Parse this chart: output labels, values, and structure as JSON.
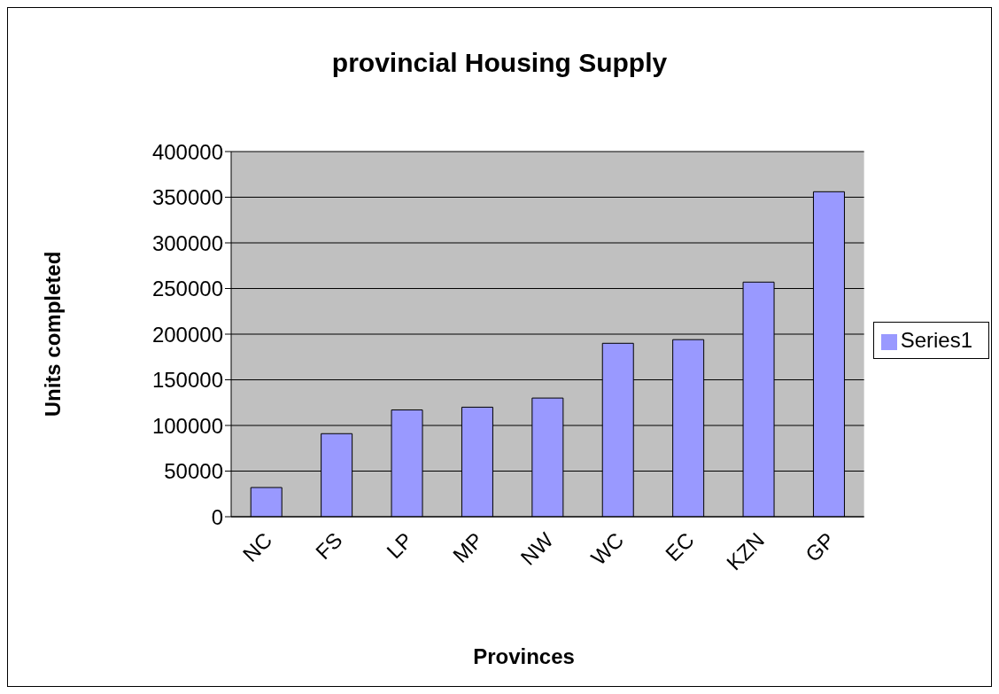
{
  "chart_data": {
    "type": "bar",
    "title": "provincial Housing Supply",
    "xlabel": "Provinces",
    "ylabel": "Units completed",
    "categories": [
      "NC",
      "FS",
      "LP",
      "MP",
      "NW",
      "WC",
      "EC",
      "KZN",
      "GP"
    ],
    "series": [
      {
        "name": "Series1",
        "color": "#9999ff",
        "values": [
          32000,
          91000,
          117000,
          120000,
          130000,
          190000,
          194000,
          257000,
          356000
        ]
      }
    ],
    "ylim": [
      0,
      400000
    ],
    "yticks": [
      0,
      50000,
      100000,
      150000,
      200000,
      250000,
      300000,
      350000,
      400000
    ],
    "grid": "y",
    "legend": "right"
  }
}
